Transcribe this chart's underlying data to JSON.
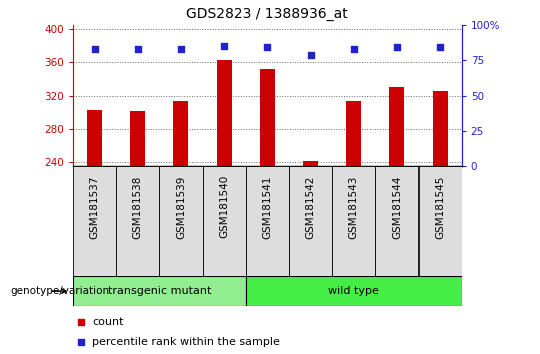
{
  "title": "GDS2823 / 1388936_at",
  "samples": [
    "GSM181537",
    "GSM181538",
    "GSM181539",
    "GSM181540",
    "GSM181541",
    "GSM181542",
    "GSM181543",
    "GSM181544",
    "GSM181545"
  ],
  "counts": [
    303,
    302,
    313,
    363,
    352,
    242,
    313,
    330,
    325
  ],
  "percentiles": [
    83,
    83,
    83,
    85,
    84,
    79,
    83,
    84,
    84
  ],
  "ylim_left": [
    235,
    405
  ],
  "ylim_right": [
    0,
    100
  ],
  "yticks_left": [
    240,
    280,
    320,
    360,
    400
  ],
  "yticks_right": [
    0,
    25,
    50,
    75,
    100
  ],
  "bar_color": "#CC0000",
  "dot_color": "#2222CC",
  "bar_width": 0.35,
  "group_transgenic_color": "#90EE90",
  "group_wildtype_color": "#44EE44",
  "group_label": "genotype/variation",
  "legend_count_label": "count",
  "legend_percentile_label": "percentile rank within the sample",
  "title_fontsize": 10,
  "tick_label_fontsize": 7.5,
  "axis_tick_color_left": "#CC0000",
  "axis_tick_color_right": "#2222CC",
  "background_color": "#FFFFFF",
  "cell_bg_color": "#DDDDDD",
  "grid_color": "#000000"
}
